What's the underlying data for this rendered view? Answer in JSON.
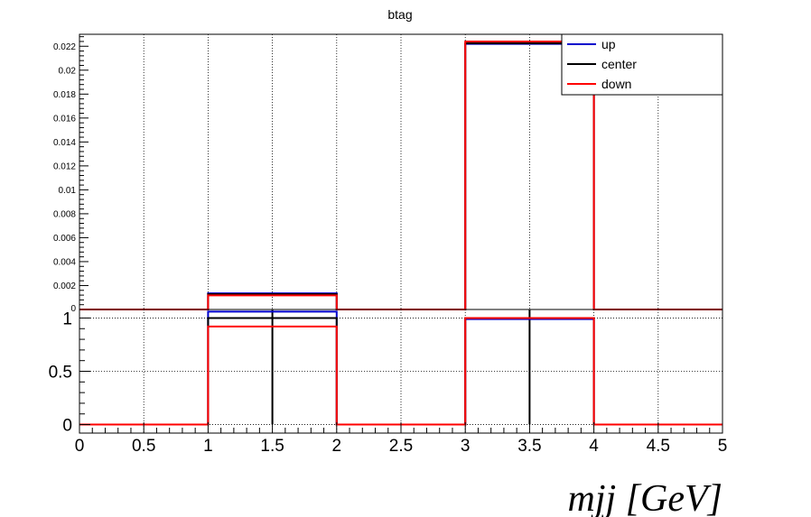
{
  "chart_data": [
    {
      "type": "line",
      "title": "btag",
      "xlabel": "",
      "ylabel": "",
      "xlim": [
        0,
        5
      ],
      "ylim": [
        0,
        0.023
      ],
      "grid": true,
      "legend_position": "top-right",
      "bin_edges": [
        0,
        1,
        2,
        3,
        4,
        5
      ],
      "yticks": [
        "0.002",
        "0.004",
        "0.006",
        "0.008",
        "0.01",
        "0.012",
        "0.014",
        "0.016",
        "0.018",
        "0.02",
        "0.022"
      ],
      "series": [
        {
          "name": "up",
          "color": "#0000cc",
          "values": [
            0,
            0.00135,
            0,
            0.0222,
            0
          ]
        },
        {
          "name": "center",
          "color": "#000000",
          "values": [
            0,
            0.00128,
            0,
            0.02225,
            0
          ]
        },
        {
          "name": "down",
          "color": "#ff0000",
          "values": [
            0,
            0.00118,
            0,
            0.0224,
            0
          ]
        }
      ]
    },
    {
      "type": "line",
      "title": "",
      "xlabel": "mjj [GeV]",
      "ylabel": "",
      "xlim": [
        0,
        5
      ],
      "ylim": [
        -0.08,
        1.08
      ],
      "grid": true,
      "bin_edges": [
        0,
        1,
        2,
        3,
        4,
        5
      ],
      "xticks": [
        "0",
        "0.5",
        "1",
        "1.5",
        "2",
        "2.5",
        "3",
        "3.5",
        "4",
        "4.5",
        "5"
      ],
      "yticks": [
        "0",
        "0.5",
        "1"
      ],
      "error_bars": [
        {
          "x": 1.5,
          "low": 0,
          "high": 1.11
        },
        {
          "x": 3.5,
          "low": 0,
          "high": 1.11
        }
      ],
      "series": [
        {
          "name": "up",
          "color": "#0000cc",
          "values": [
            0,
            1.06,
            0,
            0.99,
            0
          ]
        },
        {
          "name": "center",
          "color": "#000000",
          "values": [
            0,
            1.0,
            0,
            1.0,
            0
          ]
        },
        {
          "name": "down",
          "color": "#ff0000",
          "values": [
            0,
            0.92,
            0,
            1.0,
            0
          ]
        }
      ]
    }
  ]
}
